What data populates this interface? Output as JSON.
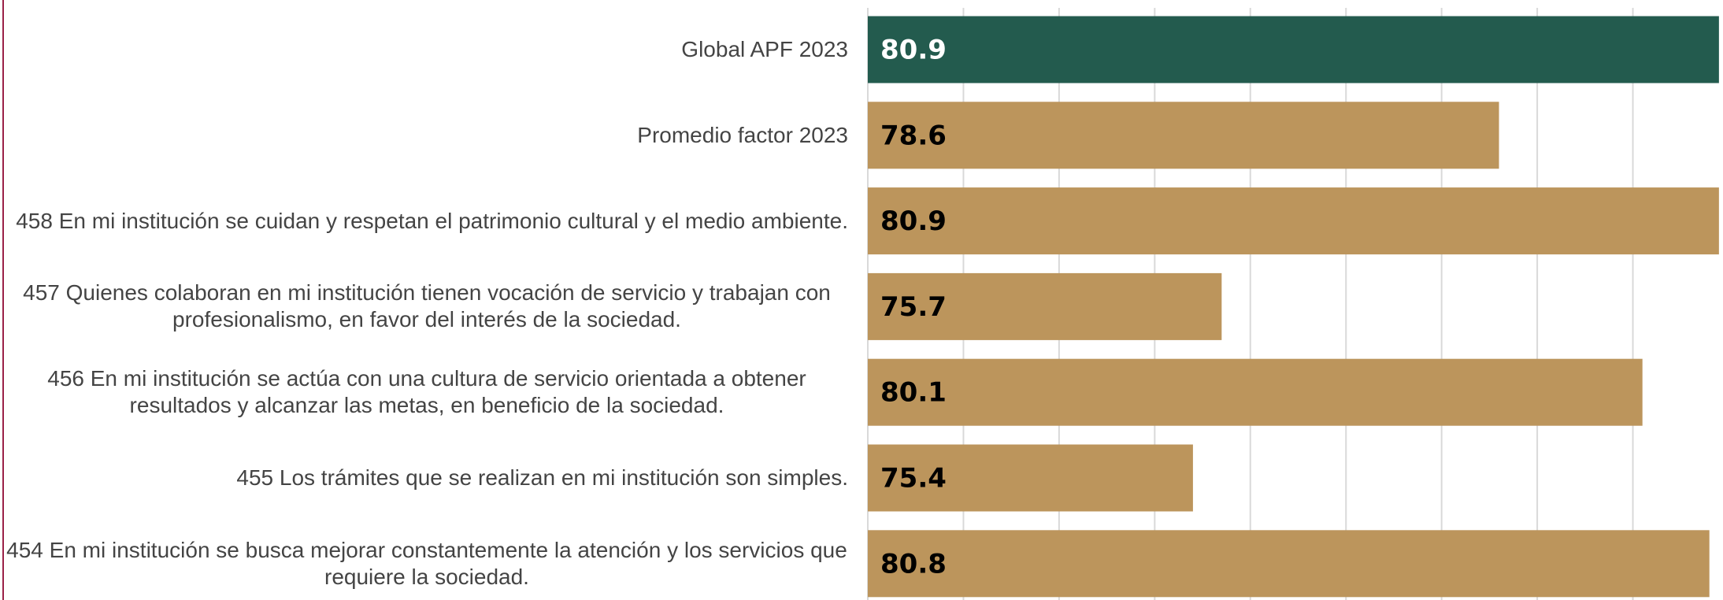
{
  "chart_data": {
    "type": "bar",
    "orientation": "horizontal",
    "categories": [
      "Global APF 2023",
      "Promedio factor 2023",
      "458 En mi institución se cuidan y respetan el patrimonio cultural y el medio ambiente.",
      "457 Quienes colaboran en mi institución tienen vocación de servicio y trabajan con profesionalismo, en favor del interés de la sociedad.",
      "456 En mi institución se actúa con una cultura de servicio orientada a obtener resultados y alcanzar las metas, en beneficio de la sociedad.",
      "455 Los trámites que se realizan en mi institución son simples.",
      "454 En mi institución se busca mejorar constantemente la atención y los servicios que requiere la sociedad."
    ],
    "values": [
      80.9,
      78.6,
      80.9,
      75.7,
      80.1,
      75.4,
      80.8
    ],
    "colors": [
      "#235b4e",
      "#bc955c",
      "#bc955c",
      "#bc955c",
      "#bc955c",
      "#bc955c",
      "#bc955c"
    ],
    "label_colors": [
      "#ffffff",
      "#000000",
      "#000000",
      "#000000",
      "#000000",
      "#000000",
      "#000000"
    ],
    "xlim": [
      72,
      81
    ],
    "xticks": [
      72,
      73,
      74,
      75,
      76,
      77,
      78,
      79,
      80,
      81
    ],
    "grid": true
  }
}
